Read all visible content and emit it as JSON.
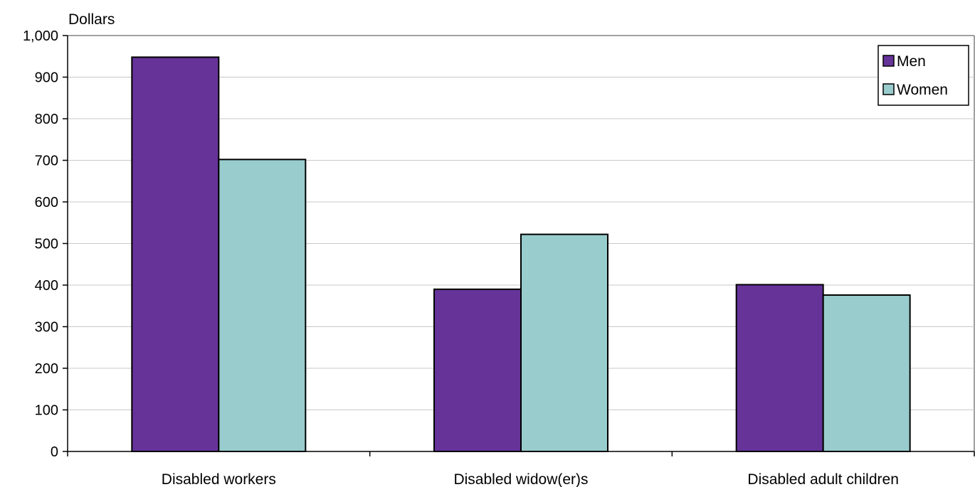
{
  "chart_data": {
    "type": "bar",
    "ylabel": "Dollars",
    "categories": [
      "Disabled workers",
      "Disabled widow(er)s",
      "Disabled adult children"
    ],
    "series": [
      {
        "name": "Men",
        "color": "#663399",
        "values": [
          948,
          390,
          401
        ]
      },
      {
        "name": "Women",
        "color": "#99CCCC",
        "values": [
          702,
          522,
          376
        ]
      }
    ],
    "ylim": [
      0,
      1000
    ],
    "yticks": [
      0,
      100,
      200,
      300,
      400,
      500,
      600,
      700,
      800,
      900,
      1000
    ],
    "ytick_labels": [
      "0",
      "100",
      "200",
      "300",
      "400",
      "500",
      "600",
      "700",
      "800",
      "900",
      "1,000"
    ],
    "grid": true,
    "legend": "top-right"
  }
}
